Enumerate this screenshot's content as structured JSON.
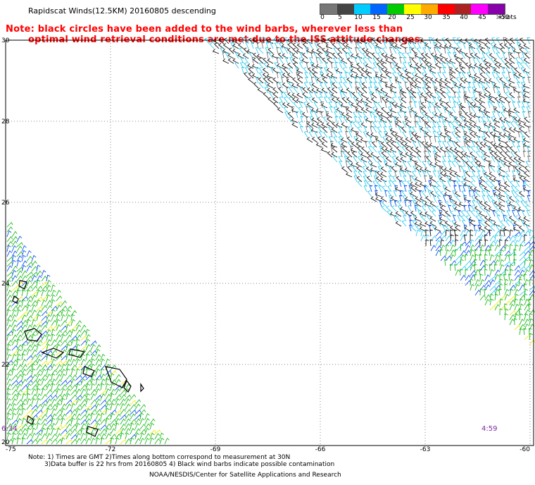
{
  "title": "Rapidscat Winds(12.5KM) 20160805 descending",
  "note_line1": "Note: black circles have been added to the wind barbs, wherever less than",
  "note_line2": "optimal wind retrieval conditions are met due to the ISS attitude changes.",
  "legend": {
    "labels": [
      "0",
      "5",
      "10",
      "15",
      "20",
      "25",
      "30",
      "35",
      "40",
      "45",
      ">50"
    ],
    "unit": "knots",
    "colors": [
      "#777777",
      "#444444",
      "#00ccff",
      "#0066ff",
      "#00cc00",
      "#ffff00",
      "#ffaa00",
      "#ff0000",
      "#aa2222",
      "#ff00ff",
      "#8800aa"
    ]
  },
  "axes": {
    "x_ticks": [
      "-75",
      "-72",
      "-69",
      "-66",
      "-63",
      "-60"
    ],
    "y_ticks": [
      "30",
      "28",
      "26",
      "24",
      "22",
      "20"
    ]
  },
  "times": {
    "left": "6:34",
    "right": "4:59"
  },
  "footer": {
    "line1": "Note: 1) Times are GMT 2)Times along bottom correspond to measurement at 30N",
    "line2": "3)Data buffer is 22 hrs from 20160805 4) Black wind barbs indicate possible contamination",
    "line3": "NOAA/NESDIS/Center for Satellite Applications and Research"
  }
}
